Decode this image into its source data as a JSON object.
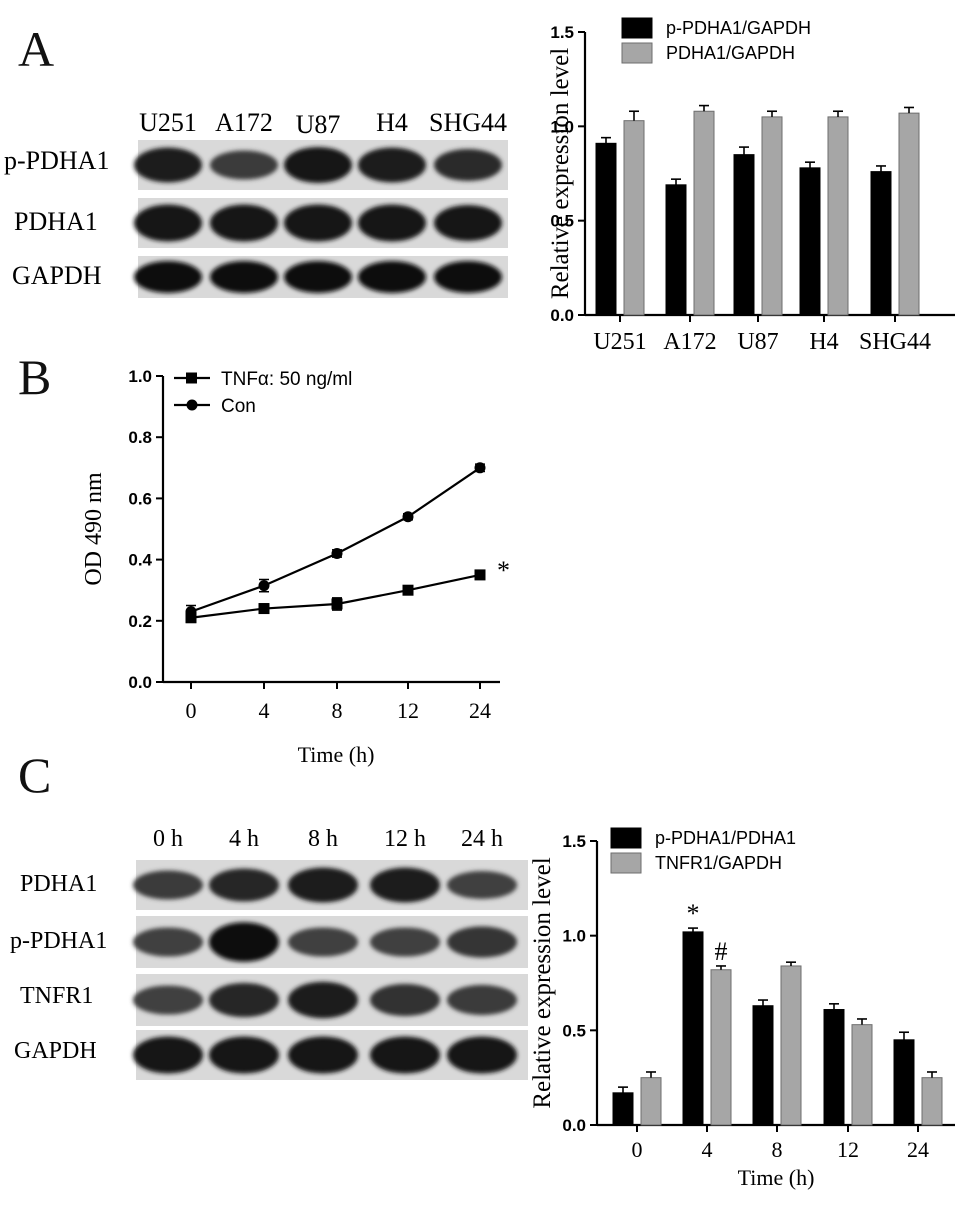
{
  "panels": {
    "A": {
      "letter": "A",
      "blot": {
        "lanes": [
          "U251",
          "A172",
          "U87",
          "H4",
          "SHG44"
        ],
        "rows": [
          {
            "label": "p-PDHA1",
            "intensity": [
              0.85,
              0.55,
              0.9,
              0.85,
              0.7
            ]
          },
          {
            "label": "PDHA1",
            "intensity": [
              0.95,
              0.95,
              0.95,
              0.95,
              0.9
            ]
          },
          {
            "label": "GAPDH",
            "intensity": [
              1.0,
              1.0,
              1.0,
              1.0,
              1.0
            ]
          }
        ]
      }
    },
    "B": {
      "letter": "B"
    },
    "C": {
      "letter": "C",
      "blot": {
        "lanes": [
          "0 h",
          "4 h",
          "8 h",
          "12 h",
          "24 h"
        ],
        "rows": [
          {
            "label": "PDHA1",
            "intensity": [
              0.55,
              0.75,
              0.85,
              0.85,
              0.5
            ]
          },
          {
            "label": "p-PDHA1",
            "intensity": [
              0.5,
              1.0,
              0.5,
              0.5,
              0.6
            ]
          },
          {
            "label": "TNFR1",
            "intensity": [
              0.5,
              0.75,
              0.85,
              0.65,
              0.55
            ]
          },
          {
            "label": "GAPDH",
            "intensity": [
              0.95,
              0.95,
              0.95,
              0.95,
              0.95
            ]
          }
        ]
      }
    }
  },
  "chart_data": [
    {
      "id": "A-bar",
      "type": "bar",
      "categories": [
        "U251",
        "A172",
        "U87",
        "H4",
        "SHG44"
      ],
      "series": [
        {
          "name": "p-PDHA1/GAPDH",
          "color": "#000000",
          "values": [
            0.91,
            0.69,
            0.85,
            0.78,
            0.76
          ],
          "errors": [
            0.03,
            0.03,
            0.04,
            0.03,
            0.03
          ]
        },
        {
          "name": "PDHA1/GAPDH",
          "color": "#a6a6a6",
          "values": [
            1.03,
            1.08,
            1.05,
            1.05,
            1.07
          ],
          "errors": [
            0.05,
            0.03,
            0.03,
            0.03,
            0.03
          ]
        }
      ],
      "ylabel": "Relative expression level",
      "ylim": [
        0,
        1.5
      ],
      "yticks": [
        "0.0",
        "0.5",
        "1.0",
        "1.5"
      ],
      "legend": "top-left",
      "grid": false
    },
    {
      "id": "B-line",
      "type": "line",
      "x_categories": [
        "0",
        "4",
        "8",
        "12",
        "24"
      ],
      "series": [
        {
          "name": "TNFα: 50 ng/ml",
          "marker": "square",
          "values": [
            0.21,
            0.24,
            0.255,
            0.3,
            0.35
          ],
          "errors": [
            0.015,
            0.015,
            0.02,
            0.012,
            0.012
          ]
        },
        {
          "name": "Con",
          "marker": "circle",
          "values": [
            0.23,
            0.315,
            0.42,
            0.54,
            0.7
          ],
          "errors": [
            0.02,
            0.02,
            0.012,
            0.01,
            0.012
          ]
        }
      ],
      "annotation": "*",
      "xlabel": "Time (h)",
      "ylabel": "OD 490 nm",
      "ylim": [
        0,
        1.0
      ],
      "yticks": [
        "0.0",
        "0.2",
        "0.4",
        "0.6",
        "0.8",
        "1.0"
      ],
      "legend": "top-left",
      "grid": false
    },
    {
      "id": "C-bar",
      "type": "bar",
      "categories": [
        "0",
        "4",
        "8",
        "12",
        "24"
      ],
      "series": [
        {
          "name": "p-PDHA1/PDHA1",
          "color": "#000000",
          "values": [
            0.17,
            1.02,
            0.63,
            0.61,
            0.45
          ],
          "errors": [
            0.03,
            0.02,
            0.03,
            0.03,
            0.04
          ],
          "annotations": [
            "",
            "*",
            "",
            "",
            ""
          ]
        },
        {
          "name": "TNFR1/GAPDH",
          "color": "#a6a6a6",
          "values": [
            0.25,
            0.82,
            0.84,
            0.53,
            0.25
          ],
          "errors": [
            0.03,
            0.02,
            0.02,
            0.03,
            0.03
          ],
          "annotations": [
            "",
            "#",
            "",
            "",
            ""
          ]
        }
      ],
      "xlabel": "Time (h)",
      "ylabel": "Relative expression level",
      "ylim": [
        0,
        1.5
      ],
      "yticks": [
        "0.0",
        "0.5",
        "1.0",
        "1.5"
      ],
      "legend": "top-left",
      "grid": false
    }
  ]
}
